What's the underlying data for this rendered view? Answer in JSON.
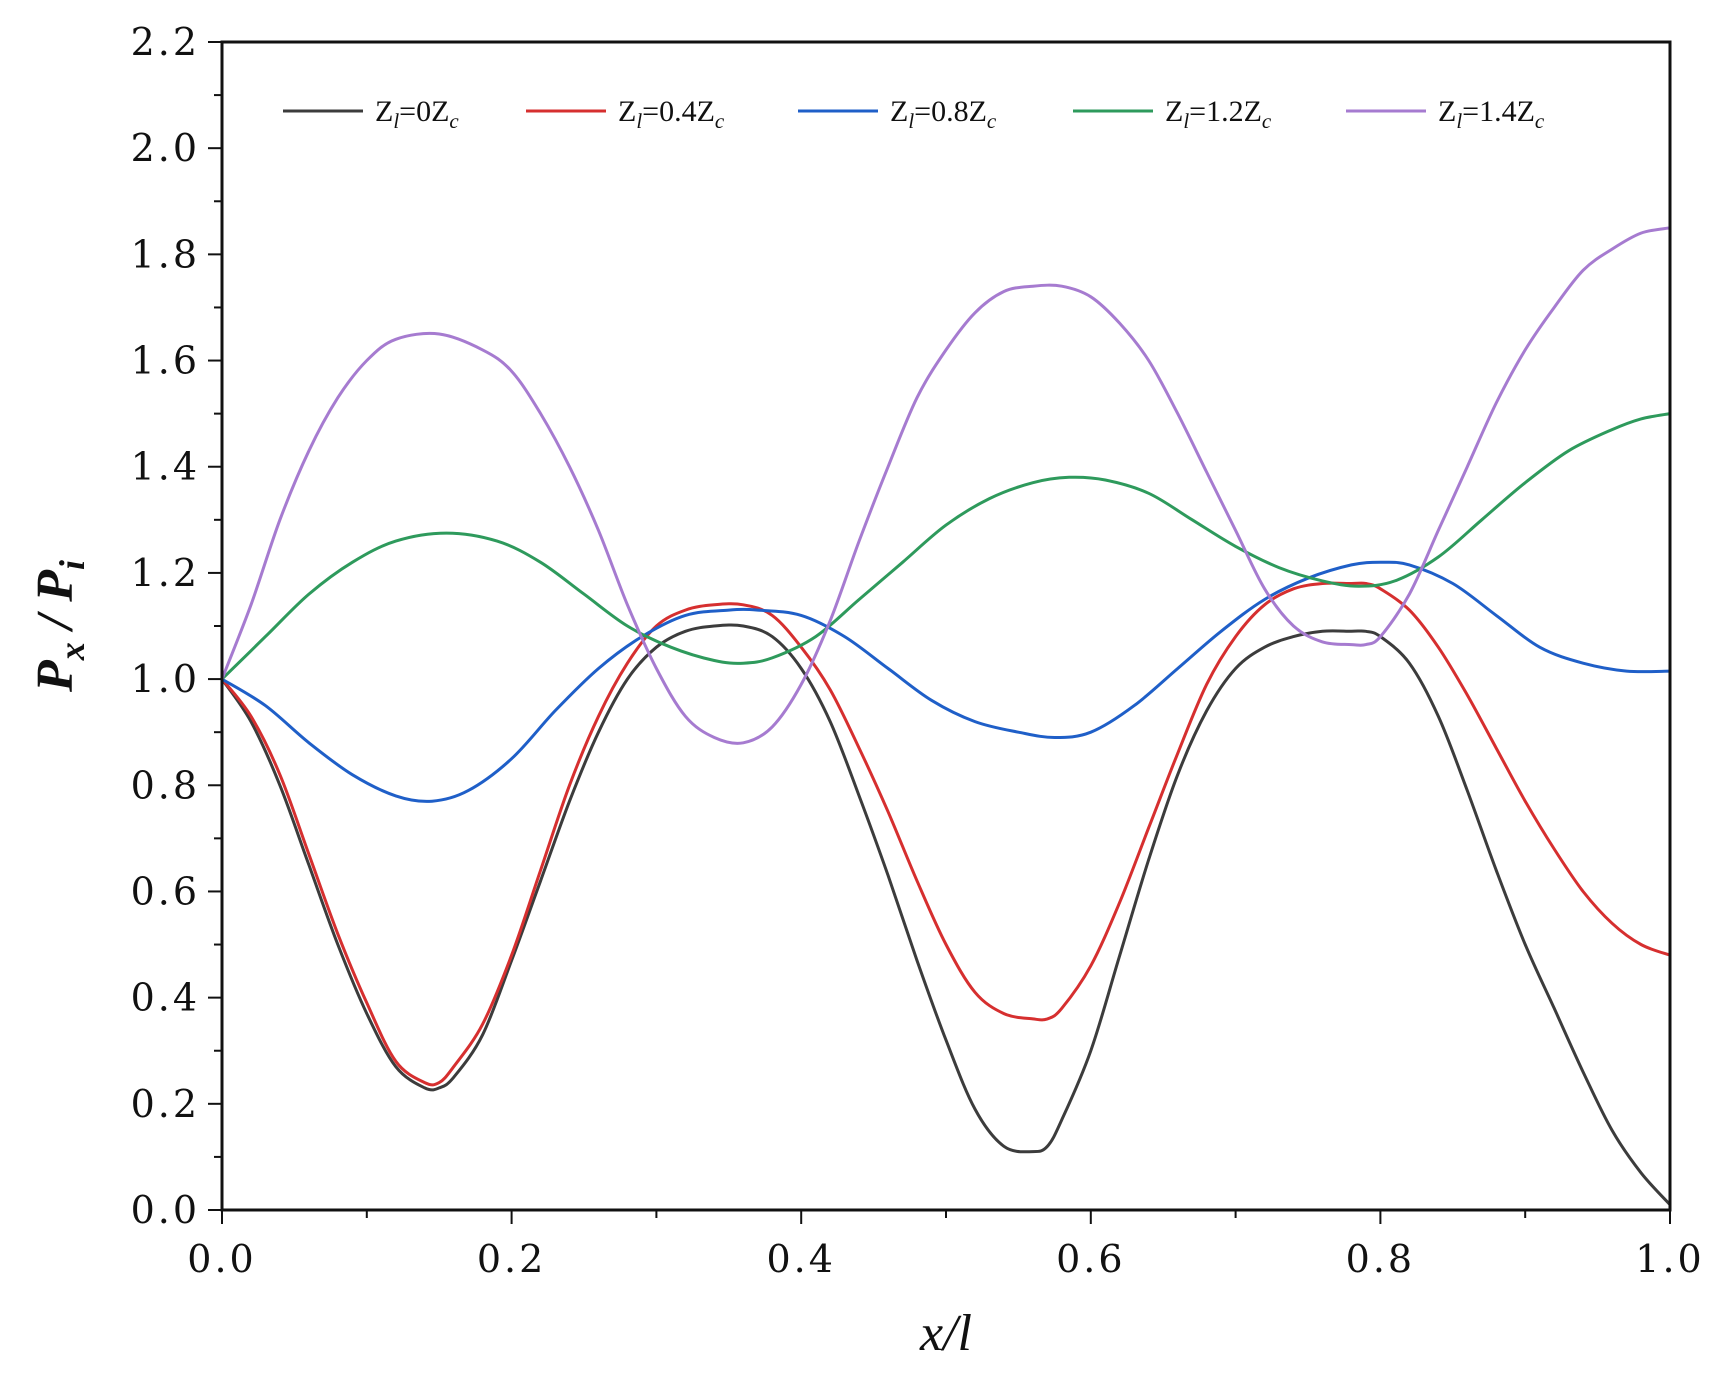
{
  "chart_data": {
    "type": "line",
    "xlabel": "x/l",
    "ylabel": {
      "main": "P",
      "sub1": "x",
      "sep": " / ",
      "main2": "P",
      "sub2": "i"
    },
    "xlim": [
      0.0,
      1.0
    ],
    "ylim": [
      0.0,
      2.2
    ],
    "xticks": [
      0.0,
      0.2,
      0.4,
      0.6,
      0.8,
      1.0
    ],
    "xtick_labels": [
      "0.0",
      "0.2",
      "0.4",
      "0.6",
      "0.8",
      "1.0"
    ],
    "yticks": [
      0.0,
      0.2,
      0.4,
      0.6,
      0.8,
      1.0,
      1.2,
      1.4,
      1.6,
      1.8,
      2.0,
      2.2
    ],
    "ytick_labels": [
      "0.0",
      "0.2",
      "0.4",
      "0.6",
      "0.8",
      "1.0",
      "1.2",
      "1.4",
      "1.6",
      "1.8",
      "2.0",
      "2.2"
    ],
    "grid": false,
    "legend_position": "top",
    "series": [
      {
        "name": "Zl=0Zc",
        "label": {
          "pre": "Z",
          "sub1": "l",
          "mid": "=0Z",
          "sub2": "c"
        },
        "color": "#3c3c3c",
        "x": [
          0.0,
          0.02,
          0.04,
          0.06,
          0.08,
          0.1,
          0.12,
          0.14,
          0.15,
          0.16,
          0.18,
          0.2,
          0.22,
          0.24,
          0.26,
          0.28,
          0.3,
          0.32,
          0.34,
          0.36,
          0.38,
          0.4,
          0.42,
          0.44,
          0.46,
          0.48,
          0.5,
          0.52,
          0.54,
          0.56,
          0.57,
          0.58,
          0.6,
          0.62,
          0.64,
          0.66,
          0.68,
          0.7,
          0.72,
          0.74,
          0.76,
          0.78,
          0.79,
          0.8,
          0.82,
          0.84,
          0.86,
          0.88,
          0.9,
          0.92,
          0.94,
          0.96,
          0.98,
          1.0
        ],
        "values": [
          1.0,
          0.92,
          0.8,
          0.65,
          0.5,
          0.37,
          0.27,
          0.23,
          0.23,
          0.25,
          0.33,
          0.47,
          0.62,
          0.77,
          0.9,
          1.0,
          1.06,
          1.09,
          1.1,
          1.1,
          1.08,
          1.02,
          0.92,
          0.78,
          0.63,
          0.47,
          0.32,
          0.19,
          0.12,
          0.11,
          0.12,
          0.17,
          0.3,
          0.48,
          0.66,
          0.82,
          0.94,
          1.02,
          1.06,
          1.08,
          1.09,
          1.09,
          1.09,
          1.08,
          1.03,
          0.93,
          0.79,
          0.64,
          0.5,
          0.38,
          0.26,
          0.15,
          0.07,
          0.01
        ]
      },
      {
        "name": "Zl=0.4Zc",
        "label": {
          "pre": "Z",
          "sub1": "l",
          "mid": "=0.4Z",
          "sub2": "c"
        },
        "color": "#d62f2f",
        "x": [
          0.0,
          0.02,
          0.04,
          0.06,
          0.08,
          0.1,
          0.12,
          0.14,
          0.15,
          0.16,
          0.18,
          0.2,
          0.22,
          0.24,
          0.26,
          0.28,
          0.3,
          0.32,
          0.34,
          0.36,
          0.38,
          0.4,
          0.42,
          0.44,
          0.46,
          0.48,
          0.5,
          0.52,
          0.54,
          0.56,
          0.57,
          0.58,
          0.6,
          0.62,
          0.64,
          0.66,
          0.68,
          0.7,
          0.72,
          0.74,
          0.76,
          0.78,
          0.79,
          0.8,
          0.82,
          0.84,
          0.86,
          0.88,
          0.9,
          0.92,
          0.94,
          0.96,
          0.98,
          1.0
        ],
        "values": [
          1.0,
          0.93,
          0.82,
          0.67,
          0.52,
          0.39,
          0.28,
          0.24,
          0.24,
          0.27,
          0.35,
          0.48,
          0.64,
          0.8,
          0.93,
          1.03,
          1.1,
          1.13,
          1.14,
          1.14,
          1.12,
          1.06,
          0.98,
          0.87,
          0.75,
          0.62,
          0.5,
          0.41,
          0.37,
          0.36,
          0.36,
          0.38,
          0.46,
          0.58,
          0.72,
          0.86,
          0.99,
          1.08,
          1.14,
          1.17,
          1.18,
          1.18,
          1.18,
          1.17,
          1.13,
          1.06,
          0.97,
          0.87,
          0.77,
          0.68,
          0.6,
          0.54,
          0.5,
          0.48
        ]
      },
      {
        "name": "Zl=0.8Zc",
        "label": {
          "pre": "Z",
          "sub1": "l",
          "mid": "=0.8Z",
          "sub2": "c"
        },
        "color": "#1f5fc8",
        "x": [
          0.0,
          0.03,
          0.06,
          0.09,
          0.12,
          0.145,
          0.17,
          0.2,
          0.23,
          0.26,
          0.29,
          0.32,
          0.35,
          0.37,
          0.4,
          0.43,
          0.46,
          0.49,
          0.52,
          0.55,
          0.575,
          0.6,
          0.63,
          0.66,
          0.69,
          0.72,
          0.75,
          0.78,
          0.8,
          0.82,
          0.85,
          0.88,
          0.91,
          0.94,
          0.97,
          1.0
        ],
        "values": [
          1.0,
          0.95,
          0.88,
          0.82,
          0.78,
          0.77,
          0.79,
          0.85,
          0.94,
          1.02,
          1.08,
          1.12,
          1.13,
          1.13,
          1.12,
          1.08,
          1.02,
          0.96,
          0.92,
          0.9,
          0.89,
          0.9,
          0.95,
          1.02,
          1.09,
          1.15,
          1.19,
          1.215,
          1.22,
          1.215,
          1.18,
          1.12,
          1.06,
          1.03,
          1.015,
          1.015
        ]
      },
      {
        "name": "Zl=1.2Zc",
        "label": {
          "pre": "Z",
          "sub1": "l",
          "mid": "=1.2Z",
          "sub2": "c"
        },
        "color": "#2e9a5c",
        "x": [
          0.0,
          0.03,
          0.06,
          0.09,
          0.12,
          0.155,
          0.19,
          0.22,
          0.25,
          0.28,
          0.31,
          0.34,
          0.36,
          0.38,
          0.41,
          0.44,
          0.47,
          0.5,
          0.53,
          0.56,
          0.585,
          0.61,
          0.64,
          0.67,
          0.7,
          0.73,
          0.76,
          0.785,
          0.81,
          0.84,
          0.87,
          0.9,
          0.93,
          0.96,
          0.98,
          1.0
        ],
        "values": [
          1.0,
          1.08,
          1.16,
          1.22,
          1.26,
          1.275,
          1.26,
          1.22,
          1.16,
          1.1,
          1.06,
          1.035,
          1.03,
          1.04,
          1.08,
          1.15,
          1.22,
          1.29,
          1.34,
          1.37,
          1.38,
          1.375,
          1.35,
          1.3,
          1.25,
          1.21,
          1.185,
          1.175,
          1.185,
          1.23,
          1.3,
          1.37,
          1.43,
          1.47,
          1.49,
          1.5
        ]
      },
      {
        "name": "Zl=1.4Zc",
        "label": {
          "pre": "Z",
          "sub1": "l",
          "mid": "=1.4Z",
          "sub2": "c"
        },
        "color": "#a67bd0",
        "x": [
          0.0,
          0.02,
          0.04,
          0.06,
          0.08,
          0.1,
          0.12,
          0.15,
          0.18,
          0.2,
          0.22,
          0.24,
          0.26,
          0.28,
          0.3,
          0.32,
          0.34,
          0.36,
          0.38,
          0.4,
          0.42,
          0.44,
          0.46,
          0.48,
          0.5,
          0.52,
          0.54,
          0.56,
          0.58,
          0.6,
          0.62,
          0.64,
          0.66,
          0.68,
          0.7,
          0.72,
          0.74,
          0.76,
          0.78,
          0.79,
          0.8,
          0.82,
          0.84,
          0.86,
          0.88,
          0.9,
          0.92,
          0.94,
          0.96,
          0.98,
          1.0
        ],
        "values": [
          1.0,
          1.14,
          1.3,
          1.43,
          1.53,
          1.6,
          1.64,
          1.65,
          1.62,
          1.58,
          1.5,
          1.4,
          1.28,
          1.14,
          1.02,
          0.93,
          0.89,
          0.88,
          0.91,
          0.99,
          1.11,
          1.26,
          1.4,
          1.53,
          1.62,
          1.69,
          1.73,
          1.74,
          1.74,
          1.72,
          1.67,
          1.6,
          1.5,
          1.39,
          1.28,
          1.17,
          1.1,
          1.07,
          1.065,
          1.065,
          1.08,
          1.16,
          1.28,
          1.4,
          1.52,
          1.62,
          1.7,
          1.77,
          1.81,
          1.84,
          1.85
        ]
      }
    ]
  }
}
